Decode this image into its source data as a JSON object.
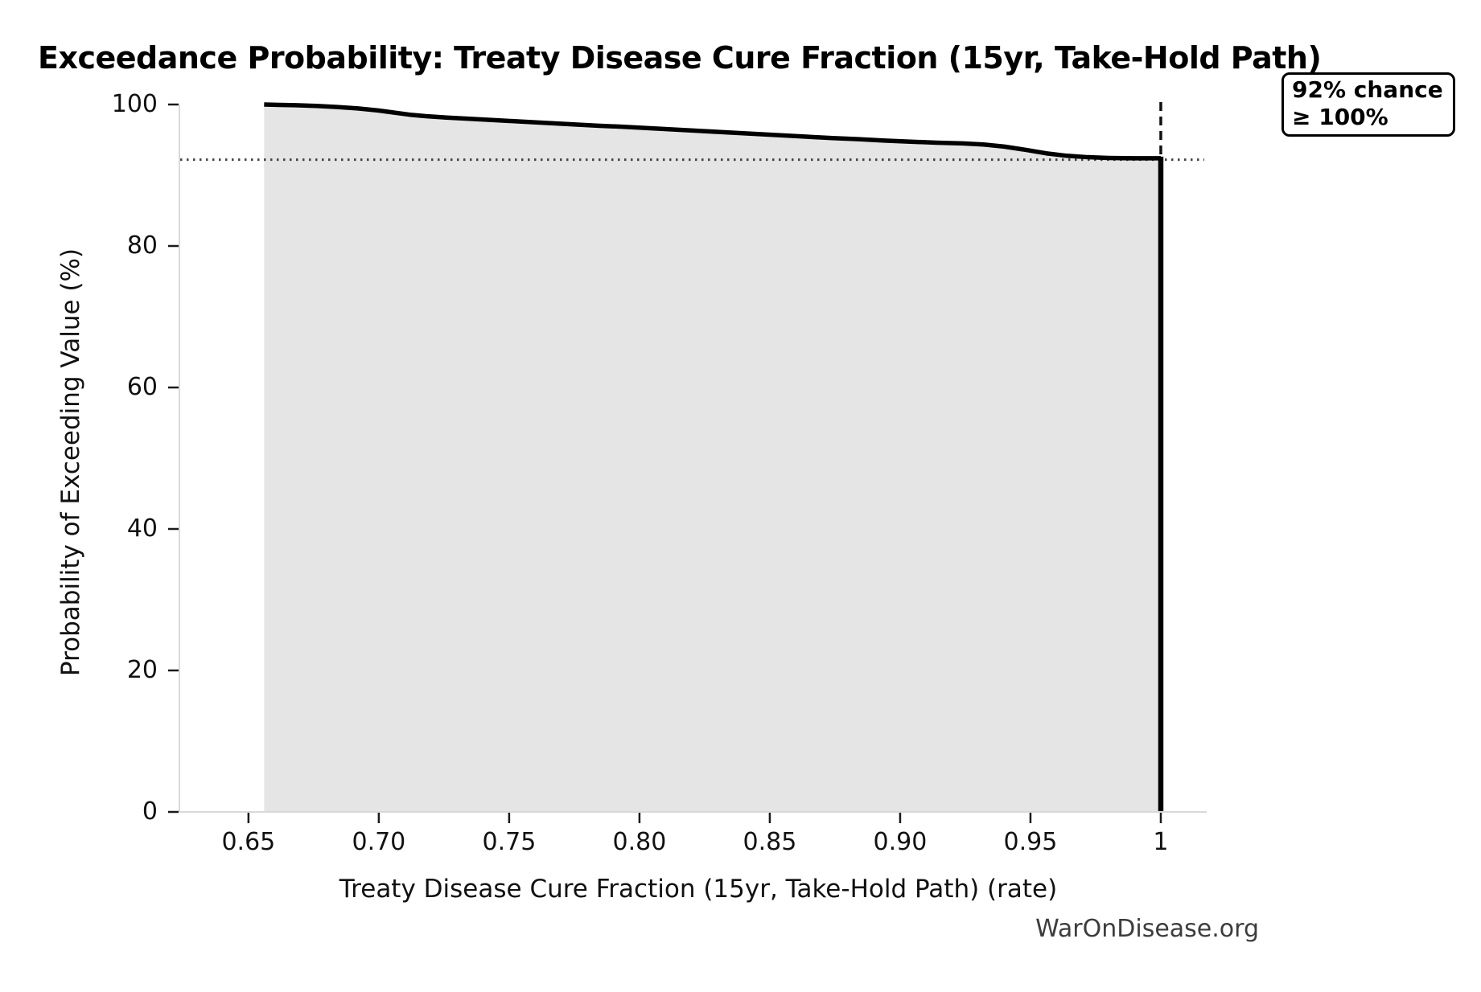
{
  "title": "Exceedance Probability: Treaty Disease Cure Fraction (15yr, Take-Hold Path)",
  "watermark": "WarOnDisease.org",
  "annotation": {
    "line1": "92% chance",
    "line2": "≥ 100%"
  },
  "chart_data": {
    "type": "area",
    "subtype": "exceedance-ccdf",
    "title": "Exceedance Probability: Treaty Disease Cure Fraction (15yr, Take-Hold Path)",
    "xlabel": "Treaty Disease Cure Fraction (15yr, Take-Hold Path) (rate)",
    "ylabel": "Probability of Exceeding Value (%)",
    "xlim": [
      0.6235,
      1.0176
    ],
    "ylim": [
      0,
      100
    ],
    "grid": false,
    "legend": "none",
    "x_ticks": [
      0.65,
      0.7,
      0.75,
      0.8,
      0.85,
      0.9,
      0.95,
      1.0
    ],
    "x_tick_labels": [
      "0.65",
      "0.70",
      "0.75",
      "0.80",
      "0.85",
      "0.90",
      "0.95",
      "1"
    ],
    "y_ticks": [
      0,
      20,
      40,
      60,
      80,
      100
    ],
    "y_tick_labels": [
      "0",
      "20",
      "40",
      "60",
      "80",
      "100"
    ],
    "series": [
      {
        "name": "exceedance_probability",
        "x": [
          0.656,
          0.662,
          0.668,
          0.676,
          0.684,
          0.692,
          0.7,
          0.706,
          0.712,
          0.718,
          0.726,
          0.734,
          0.744,
          0.754,
          0.764,
          0.774,
          0.784,
          0.794,
          0.804,
          0.814,
          0.824,
          0.834,
          0.844,
          0.854,
          0.864,
          0.874,
          0.884,
          0.894,
          0.904,
          0.914,
          0.924,
          0.932,
          0.94,
          0.948,
          0.956,
          0.964,
          0.972,
          0.98,
          0.99,
          1.0
        ],
        "y": [
          100.0,
          99.95,
          99.9,
          99.8,
          99.65,
          99.45,
          99.15,
          98.85,
          98.55,
          98.35,
          98.15,
          98.0,
          97.8,
          97.6,
          97.4,
          97.2,
          97.0,
          96.85,
          96.65,
          96.45,
          96.25,
          96.05,
          95.85,
          95.65,
          95.45,
          95.25,
          95.1,
          94.9,
          94.75,
          94.6,
          94.5,
          94.35,
          94.05,
          93.6,
          93.1,
          92.75,
          92.55,
          92.45,
          92.4,
          92.4
        ]
      }
    ],
    "terminal_drop": {
      "x": 1.0,
      "from_pct": 92.4,
      "to_pct": 0
    },
    "reference_lines": {
      "dotted_horizontal_pct": 92.2,
      "dashed_vertical_x": 1.0,
      "dashed_vertical_from_pct": 92.2,
      "dashed_vertical_to_pct": 100
    },
    "colors": {
      "fill": "#e5e5e5",
      "line": "#000000",
      "spine": "#d9d9d9",
      "tick": "#1a1a1a",
      "dotted_line": "#444444",
      "dashed_line": "#111111"
    }
  }
}
